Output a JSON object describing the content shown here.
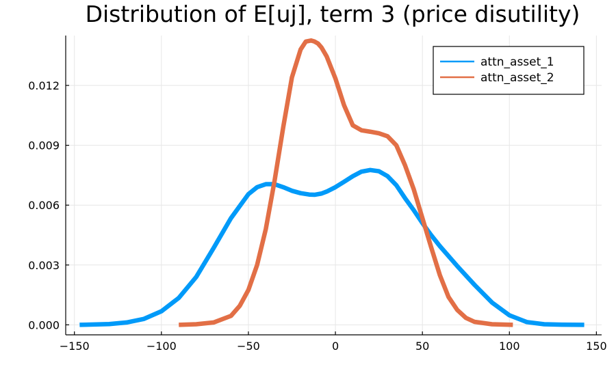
{
  "chart_data": {
    "type": "line",
    "title": "Distribution of E[uj], term 3 (price disutility)",
    "xlabel": "",
    "ylabel": "",
    "xlim": [
      -155,
      153
    ],
    "ylim": [
      -0.0005,
      0.0145
    ],
    "x_ticks": [
      -150,
      -100,
      -50,
      0,
      50,
      100,
      150
    ],
    "x_tick_labels": [
      "−150",
      "−100",
      "−50",
      "0",
      "50",
      "100",
      "150"
    ],
    "y_ticks": [
      0.0,
      0.003,
      0.006,
      0.009,
      0.012
    ],
    "y_tick_labels": [
      "0.000",
      "0.003",
      "0.006",
      "0.009",
      "0.012"
    ],
    "grid": true,
    "legend_position": "top-right",
    "series": [
      {
        "name": "attn_asset_1",
        "color": "#009af9",
        "x": [
          -147,
          -130,
          -120,
          -110,
          -100,
          -90,
          -80,
          -70,
          -60,
          -50,
          -45,
          -40,
          -35,
          -30,
          -25,
          -20,
          -15,
          -12,
          -8,
          -5,
          0,
          5,
          10,
          15,
          20,
          25,
          30,
          35,
          40,
          45,
          50,
          55,
          60,
          70,
          80,
          90,
          100,
          110,
          120,
          130,
          143
        ],
        "y": [
          0.0,
          4e-05,
          0.00012,
          0.0003,
          0.00068,
          0.00135,
          0.0024,
          0.00385,
          0.00535,
          0.00655,
          0.0069,
          0.00705,
          0.00705,
          0.0069,
          0.00672,
          0.0066,
          0.00653,
          0.00652,
          0.00658,
          0.00668,
          0.0069,
          0.00717,
          0.00745,
          0.00768,
          0.00776,
          0.0077,
          0.00745,
          0.007,
          0.00635,
          0.00575,
          0.0051,
          0.0045,
          0.00395,
          0.00295,
          0.002,
          0.00112,
          0.00048,
          0.00014,
          3e-05,
          1e-05,
          0.0
        ]
      },
      {
        "name": "attn_asset_2",
        "color": "#e26f46",
        "x": [
          -90,
          -80,
          -70,
          -60,
          -55,
          -50,
          -45,
          -40,
          -35,
          -30,
          -25,
          -20,
          -17,
          -14,
          -12,
          -10,
          -8,
          -5,
          0,
          5,
          10,
          15,
          20,
          25,
          30,
          35,
          40,
          45,
          50,
          55,
          60,
          65,
          70,
          75,
          80,
          90,
          102
        ],
        "y": [
          0.0,
          3e-05,
          0.00012,
          0.00045,
          0.00095,
          0.00175,
          0.003,
          0.0048,
          0.0072,
          0.0099,
          0.0124,
          0.0138,
          0.0142,
          0.01425,
          0.0142,
          0.0141,
          0.0139,
          0.01345,
          0.01235,
          0.011,
          0.01,
          0.00975,
          0.00968,
          0.0096,
          0.00945,
          0.009,
          0.008,
          0.0068,
          0.00535,
          0.0039,
          0.0025,
          0.0014,
          0.00075,
          0.00035,
          0.00015,
          3e-05,
          0.0
        ]
      }
    ]
  }
}
